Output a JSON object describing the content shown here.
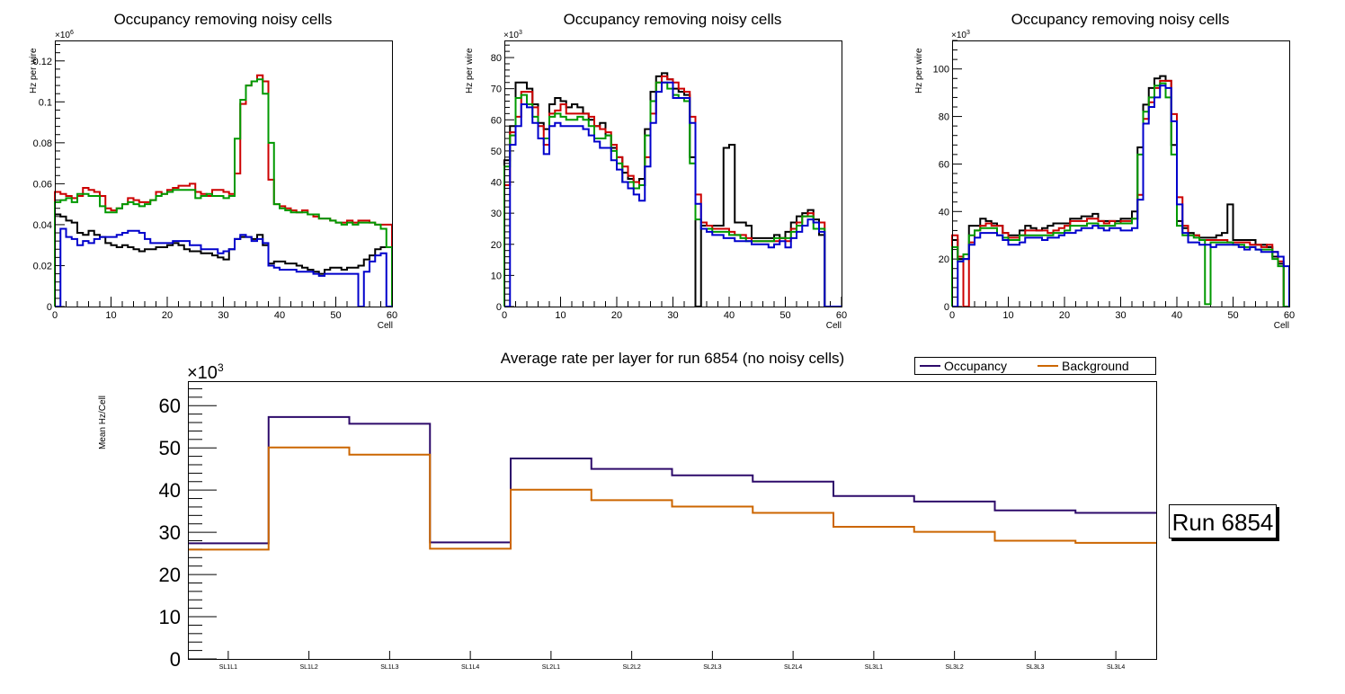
{
  "chart_data": [
    {
      "type": "line",
      "style": "step-histogram",
      "title": "Occupancy removing noisy cells",
      "xlabel": "Cell",
      "ylabel": "Hz per wire",
      "y_multiplier_label": "×10",
      "y_multiplier_exp": "6",
      "xlim": [
        0,
        60
      ],
      "ylim": [
        0,
        0.13
      ],
      "x_ticks": [
        "0",
        "10",
        "20",
        "30",
        "40",
        "50",
        "60"
      ],
      "y_ticks": [
        "0",
        "0.02",
        "0.04",
        "0.06",
        "0.08",
        "0.1",
        "0.12"
      ],
      "y_tick_values": [
        0,
        0.02,
        0.04,
        0.06,
        0.08,
        0.1,
        0.12
      ],
      "series": [
        {
          "name": "black",
          "color": "#000000",
          "values": [
            0.045,
            0.044,
            0.042,
            0.041,
            0.036,
            0.035,
            0.037,
            0.035,
            0.034,
            0.031,
            0.03,
            0.029,
            0.03,
            0.029,
            0.028,
            0.027,
            0.028,
            0.028,
            0.029,
            0.029,
            0.03,
            0.031,
            0.03,
            0.028,
            0.027,
            0.027,
            0.026,
            0.026,
            0.025,
            0.024,
            0.023,
            0.028,
            0.033,
            0.034,
            0.034,
            0.033,
            0.035,
            0.03,
            0.021,
            0.022,
            0.022,
            0.021,
            0.021,
            0.02,
            0.019,
            0.018,
            0.017,
            0.016,
            0.018,
            0.019,
            0.019,
            0.018,
            0.019,
            0.019,
            0.02,
            0.023,
            0.025,
            0.028,
            0.029,
            0.029
          ]
        },
        {
          "name": "red",
          "color": "#cc0000",
          "values": [
            0.056,
            0.055,
            0.054,
            0.053,
            0.054,
            0.058,
            0.057,
            0.056,
            0.054,
            0.048,
            0.047,
            0.048,
            0.05,
            0.053,
            0.052,
            0.051,
            0.051,
            0.052,
            0.056,
            0.055,
            0.057,
            0.058,
            0.059,
            0.059,
            0.06,
            0.056,
            0.055,
            0.054,
            0.057,
            0.057,
            0.056,
            0.055,
            0.065,
            0.099,
            0.108,
            0.11,
            0.113,
            0.11,
            0.062,
            0.05,
            0.049,
            0.048,
            0.047,
            0.046,
            0.047,
            0.045,
            0.044,
            0.043,
            0.043,
            0.042,
            0.041,
            0.041,
            0.042,
            0.041,
            0.042,
            0.042,
            0.041,
            0.04,
            0.04,
            0.04
          ]
        },
        {
          "name": "green",
          "color": "#009900",
          "values": [
            0.051,
            0.052,
            0.053,
            0.051,
            0.055,
            0.055,
            0.054,
            0.054,
            0.049,
            0.046,
            0.046,
            0.048,
            0.05,
            0.051,
            0.05,
            0.049,
            0.05,
            0.052,
            0.054,
            0.055,
            0.056,
            0.057,
            0.057,
            0.057,
            0.057,
            0.053,
            0.054,
            0.055,
            0.054,
            0.054,
            0.053,
            0.054,
            0.082,
            0.101,
            0.108,
            0.11,
            0.111,
            0.104,
            0.08,
            0.05,
            0.048,
            0.047,
            0.046,
            0.046,
            0.046,
            0.045,
            0.045,
            0.043,
            0.043,
            0.042,
            0.041,
            0.04,
            0.041,
            0.04,
            0.041,
            0.041,
            0.041,
            0.04,
            0.038,
            0.029
          ]
        },
        {
          "name": "blue",
          "color": "#0000cc",
          "values": [
            0.0,
            0.038,
            0.034,
            0.033,
            0.03,
            0.032,
            0.031,
            0.033,
            0.034,
            0.034,
            0.034,
            0.035,
            0.036,
            0.037,
            0.037,
            0.036,
            0.033,
            0.031,
            0.031,
            0.031,
            0.031,
            0.032,
            0.032,
            0.032,
            0.03,
            0.03,
            0.028,
            0.028,
            0.028,
            0.026,
            0.027,
            0.028,
            0.033,
            0.035,
            0.034,
            0.032,
            0.033,
            0.031,
            0.02,
            0.019,
            0.018,
            0.018,
            0.018,
            0.017,
            0.017,
            0.017,
            0.016,
            0.015,
            0.016,
            0.016,
            0.016,
            0.016,
            0.016,
            0.016,
            0.0,
            0.017,
            0.022,
            0.025,
            0.026,
            0.0
          ]
        }
      ]
    },
    {
      "type": "line",
      "style": "step-histogram",
      "title": "Occupancy removing noisy cells",
      "xlabel": "Cell",
      "ylabel": "Hz per wire",
      "y_multiplier_label": "×10",
      "y_multiplier_exp": "3",
      "xlim": [
        0,
        60
      ],
      "ylim": [
        0,
        85.5
      ],
      "x_ticks": [
        "0",
        "10",
        "20",
        "30",
        "40",
        "50",
        "60"
      ],
      "y_ticks": [
        "0",
        "10",
        "20",
        "30",
        "40",
        "50",
        "60",
        "70",
        "80"
      ],
      "y_tick_values": [
        0,
        10,
        20,
        30,
        40,
        50,
        60,
        70,
        80
      ],
      "series": [
        {
          "name": "black",
          "color": "#000000",
          "values": [
            47,
            58,
            72,
            72,
            70,
            65,
            59,
            57,
            65,
            67,
            66,
            64,
            65,
            64,
            62,
            60,
            58,
            59,
            55,
            51,
            48,
            43,
            41,
            40,
            41,
            57,
            69,
            74,
            75,
            73,
            70,
            69,
            68,
            48,
            0,
            26,
            26,
            26,
            26,
            51,
            52,
            27,
            27,
            26,
            22,
            22,
            22,
            22,
            23,
            22,
            24,
            27,
            29,
            30,
            31,
            28,
            23,
            0,
            0,
            0
          ]
        },
        {
          "name": "red",
          "color": "#cc0000",
          "values": [
            39,
            56,
            61,
            69,
            69,
            64,
            58,
            52,
            62,
            63,
            65,
            62,
            62,
            62,
            62,
            61,
            58,
            57,
            56,
            52,
            48,
            45,
            42,
            40,
            39,
            48,
            62,
            72,
            74,
            73,
            72,
            70,
            69,
            61,
            36,
            27,
            26,
            25,
            25,
            25,
            24,
            23,
            23,
            22,
            21,
            21,
            21,
            21,
            21,
            22,
            21,
            25,
            27,
            29,
            30,
            27,
            27,
            0,
            0,
            0
          ]
        },
        {
          "name": "green",
          "color": "#009900",
          "values": [
            45,
            55,
            67,
            68,
            65,
            61,
            54,
            54,
            61,
            62,
            61,
            60,
            60,
            61,
            60,
            58,
            54,
            54,
            55,
            50,
            46,
            40,
            40,
            38,
            39,
            55,
            66,
            72,
            72,
            70,
            68,
            67,
            66,
            46,
            28,
            25,
            25,
            24,
            24,
            24,
            23,
            23,
            22,
            21,
            21,
            21,
            21,
            21,
            22,
            22,
            22,
            24,
            26,
            29,
            29,
            25,
            25,
            0,
            0,
            0
          ]
        },
        {
          "name": "blue",
          "color": "#0000cc",
          "values": [
            0,
            52,
            58,
            65,
            64,
            59,
            54,
            49,
            58,
            59,
            58,
            58,
            58,
            58,
            57,
            55,
            53,
            51,
            51,
            47,
            44,
            40,
            38,
            36,
            34,
            45,
            59,
            69,
            72,
            72,
            67,
            67,
            67,
            59,
            33,
            25,
            24,
            23,
            23,
            22,
            22,
            21,
            21,
            21,
            20,
            20,
            20,
            19,
            20,
            21,
            19,
            22,
            24,
            26,
            28,
            27,
            24,
            0,
            0,
            0
          ]
        }
      ]
    },
    {
      "type": "line",
      "style": "step-histogram",
      "title": "Occupancy removing noisy cells",
      "xlabel": "Cell",
      "ylabel": "Hz per wire",
      "y_multiplier_label": "×10",
      "y_multiplier_exp": "3",
      "xlim": [
        0,
        60
      ],
      "ylim": [
        0,
        112
      ],
      "x_ticks": [
        "0",
        "10",
        "20",
        "30",
        "40",
        "50",
        "60"
      ],
      "y_ticks": [
        "0",
        "20",
        "40",
        "60",
        "80",
        "100"
      ],
      "y_tick_values": [
        0,
        20,
        40,
        60,
        80,
        100
      ],
      "series": [
        {
          "name": "black",
          "color": "#000000",
          "values": [
            28,
            20,
            20,
            34,
            34,
            37,
            36,
            35,
            34,
            31,
            30,
            30,
            32,
            34,
            33,
            32,
            33,
            34,
            35,
            35,
            35,
            37,
            37,
            38,
            38,
            39,
            36,
            36,
            36,
            36,
            37,
            37,
            40,
            67,
            85,
            92,
            96,
            97,
            95,
            68,
            36,
            33,
            31,
            30,
            29,
            29,
            29,
            30,
            31,
            43,
            28,
            28,
            28,
            28,
            26,
            26,
            25,
            21,
            18,
            0
          ]
        },
        {
          "name": "red",
          "color": "#cc0000",
          "values": [
            30,
            21,
            0,
            27,
            32,
            34,
            35,
            34,
            34,
            31,
            29,
            29,
            30,
            32,
            32,
            32,
            32,
            31,
            32,
            33,
            34,
            36,
            36,
            36,
            37,
            37,
            36,
            35,
            36,
            35,
            36,
            36,
            37,
            47,
            79,
            86,
            92,
            95,
            95,
            81,
            46,
            34,
            30,
            30,
            28,
            28,
            28,
            28,
            28,
            27,
            27,
            27,
            27,
            26,
            26,
            25,
            26,
            23,
            19,
            0
          ]
        },
        {
          "name": "green",
          "color": "#009900",
          "values": [
            25,
            19,
            22,
            30,
            32,
            33,
            33,
            33,
            30,
            29,
            28,
            28,
            30,
            30,
            30,
            30,
            30,
            30,
            31,
            31,
            32,
            34,
            34,
            34,
            35,
            35,
            34,
            34,
            34,
            35,
            35,
            35,
            37,
            64,
            82,
            88,
            93,
            94,
            88,
            64,
            34,
            30,
            30,
            29,
            28,
            1,
            27,
            27,
            27,
            27,
            26,
            26,
            25,
            25,
            24,
            24,
            24,
            20,
            17,
            0
          ]
        },
        {
          "name": "blue",
          "color": "#0000cc",
          "values": [
            0,
            19,
            20,
            26,
            29,
            31,
            31,
            31,
            30,
            28,
            26,
            26,
            27,
            29,
            29,
            29,
            28,
            29,
            29,
            30,
            31,
            31,
            32,
            33,
            33,
            34,
            33,
            32,
            33,
            33,
            32,
            32,
            33,
            45,
            77,
            84,
            88,
            93,
            92,
            78,
            43,
            31,
            27,
            27,
            26,
            26,
            25,
            26,
            26,
            26,
            26,
            25,
            24,
            25,
            24,
            23,
            23,
            23,
            21,
            17
          ]
        }
      ]
    },
    {
      "type": "line",
      "style": "step-histogram",
      "title": "Average rate per layer for run 6854 (no noisy cells)",
      "xlabel": "",
      "ylabel": "Mean Hz/Cell",
      "y_multiplier_label": "×10",
      "y_multiplier_exp": "3",
      "ylim": [
        0,
        65.8
      ],
      "y_ticks": [
        "0",
        "10",
        "20",
        "30",
        "40",
        "50",
        "60"
      ],
      "y_tick_values": [
        0,
        10,
        20,
        30,
        40,
        50,
        60
      ],
      "categories": [
        "SL1L1",
        "SL1L2",
        "SL1L3",
        "SL1L4",
        "SL2L1",
        "SL2L2",
        "SL2L3",
        "SL2L4",
        "SL3L1",
        "SL3L2",
        "SL3L3",
        "SL3L4"
      ],
      "legend": {
        "position": "top-right"
      },
      "series": [
        {
          "name": "Occupancy",
          "color": "#2d0a6a",
          "values": [
            27.4,
            57.3,
            55.7,
            27.6,
            47.5,
            45.0,
            43.5,
            42.0,
            38.6,
            37.3,
            35.2,
            34.6
          ]
        },
        {
          "name": "Background",
          "color": "#cc6600",
          "values": [
            25.9,
            50.1,
            48.4,
            26.1,
            40.1,
            37.6,
            36.1,
            34.6,
            31.3,
            30.1,
            28.0,
            27.5
          ]
        }
      ],
      "annotation": "Run 6854"
    }
  ]
}
